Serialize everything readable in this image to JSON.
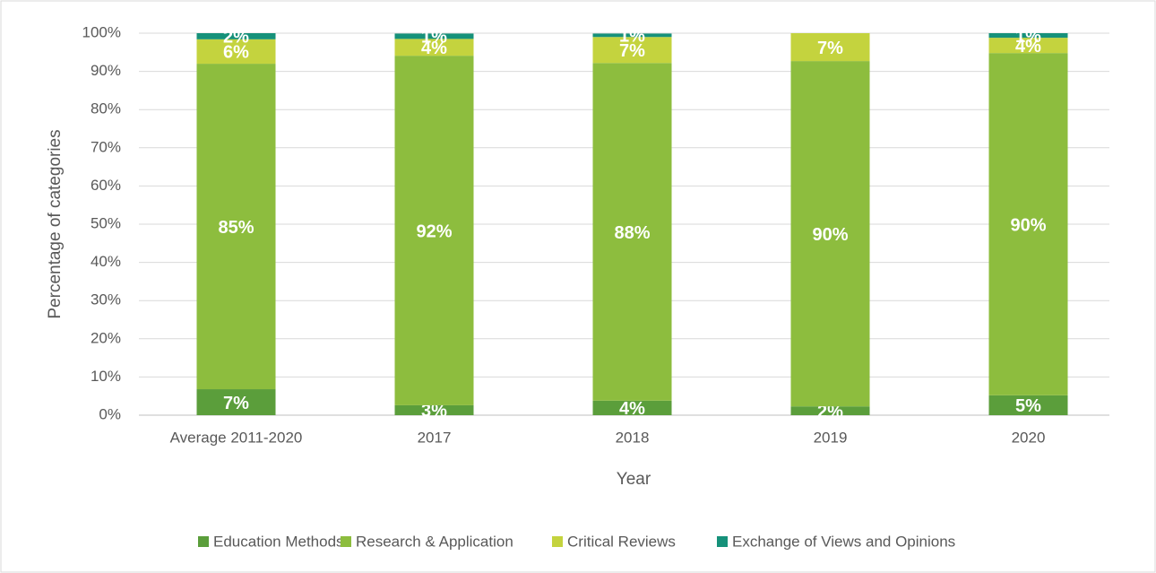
{
  "chart_data": {
    "type": "stacked_bar",
    "categories": [
      "Average 2011-2020",
      "2017",
      "2018",
      "2019",
      "2020"
    ],
    "series": [
      {
        "name": "Education Methods",
        "color": "#5b9e3b",
        "values": [
          6.8,
          2.6,
          3.8,
          2.3,
          5.2
        ],
        "value_labels": [
          "7%",
          "3%",
          "4%",
          "2%",
          "5%"
        ]
      },
      {
        "name": "Research & Application",
        "color": "#8dbd3e",
        "values": [
          85.2,
          91.5,
          88.4,
          90.4,
          89.6
        ],
        "value_labels": [
          "85%",
          "92%",
          "88%",
          "90%",
          "90%"
        ]
      },
      {
        "name": "Critical Reviews",
        "color": "#c4d33e",
        "values": [
          6.4,
          4.4,
          6.8,
          7.3,
          4.0
        ],
        "value_labels": [
          "6%",
          "4%",
          "7%",
          "7%",
          "4%"
        ]
      },
      {
        "name": "Exchange of Views and Opinions",
        "color": "#16917a",
        "values": [
          1.6,
          1.4,
          0.9,
          0,
          1.2
        ],
        "value_labels": [
          "2%",
          "1%",
          "1%",
          null,
          "1%"
        ]
      }
    ],
    "ylim": [
      0,
      100
    ],
    "yticks": [
      {
        "value": 0,
        "label": "0%"
      },
      {
        "value": 10,
        "label": "10%"
      },
      {
        "value": 20,
        "label": "20%"
      },
      {
        "value": 30,
        "label": "30%"
      },
      {
        "value": 40,
        "label": "40%"
      },
      {
        "value": 50,
        "label": "50%"
      },
      {
        "value": 60,
        "label": "60%"
      },
      {
        "value": 70,
        "label": "70%"
      },
      {
        "value": 80,
        "label": "80%"
      },
      {
        "value": 90,
        "label": "90%"
      },
      {
        "value": 100,
        "label": "100%"
      }
    ],
    "xlabel": "Year",
    "ylabel": "Percentage of categories",
    "grid": true,
    "legend": "bottom"
  }
}
